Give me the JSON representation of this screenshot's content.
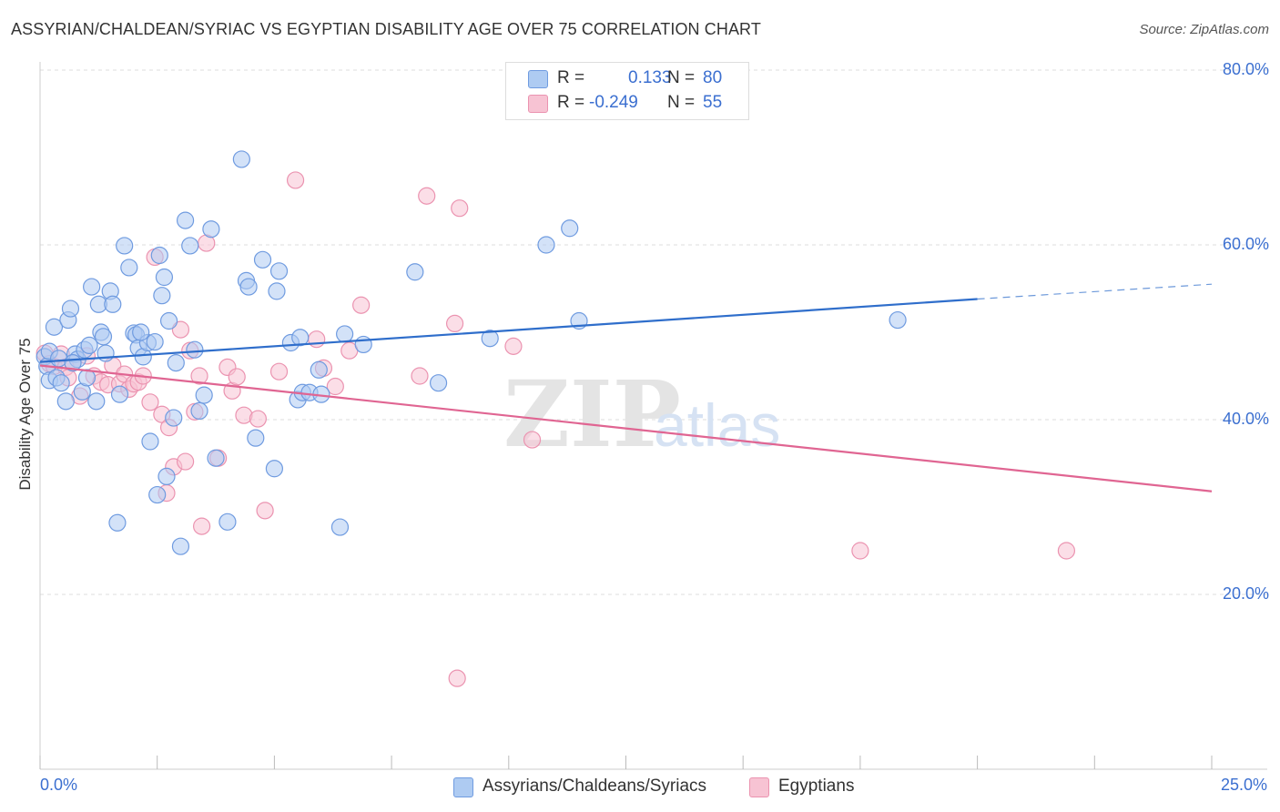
{
  "title": "ASSYRIAN/CHALDEAN/SYRIAC VS EGYPTIAN DISABILITY AGE OVER 75 CORRELATION CHART",
  "source": "Source: ZipAtlas.com",
  "colors": {
    "blue_fill": "#aecbf2",
    "blue_stroke": "#6f9be0",
    "blue_line": "#2f6ecb",
    "pink_fill": "#f7c3d3",
    "pink_stroke": "#eb93b0",
    "pink_line": "#e06592",
    "tick_text": "#3b6fd0"
  },
  "legend": {
    "blue": {
      "r_label": "R =",
      "r_value": "0.133",
      "n_label": "N =",
      "n_value": "80"
    },
    "pink": {
      "r_label": "R =",
      "r_value": "-0.249",
      "n_label": "N =",
      "n_value": "55"
    }
  },
  "bottom_legend": {
    "blue": "Assyrians/Chaldeans/Syriacs",
    "pink": "Egyptians"
  },
  "watermark": {
    "zip": "ZIP",
    "atlas": "atlas"
  },
  "chart_data": {
    "type": "scatter",
    "title": "ASSYRIAN/CHALDEAN/SYRIAC VS EGYPTIAN DISABILITY AGE OVER 75 CORRELATION CHART",
    "xlabel": "",
    "ylabel": "Disability Age Over 75",
    "xlim": [
      0,
      25
    ],
    "ylim": [
      0,
      80
    ],
    "x_tick_labels": [
      "0.0%",
      "25.0%"
    ],
    "y_ticks": [
      20,
      40,
      60,
      80
    ],
    "y_tick_labels": [
      "20.0%",
      "40.0%",
      "60.0%",
      "80.0%"
    ],
    "grid": true,
    "series": [
      {
        "name": "Assyrians/Chaldeans/Syriacs",
        "color": "blue",
        "trend": {
          "x0": 0,
          "y0": 46.6,
          "x1": 20,
          "y1": 53.8,
          "dash_to_x": 25,
          "dash_to_y": 55.5
        },
        "points": [
          [
            0.1,
            47.2
          ],
          [
            0.15,
            46.1
          ],
          [
            0.2,
            44.5
          ],
          [
            0.3,
            50.6
          ],
          [
            0.35,
            44.8
          ],
          [
            0.45,
            44.2
          ],
          [
            0.55,
            42.1
          ],
          [
            0.6,
            51.4
          ],
          [
            0.65,
            52.7
          ],
          [
            0.75,
            47.5
          ],
          [
            0.8,
            46.9
          ],
          [
            0.9,
            43.2
          ],
          [
            0.95,
            48.0
          ],
          [
            1.0,
            44.8
          ],
          [
            1.1,
            55.2
          ],
          [
            1.2,
            42.1
          ],
          [
            1.25,
            53.2
          ],
          [
            1.3,
            50.0
          ],
          [
            1.4,
            47.6
          ],
          [
            1.5,
            54.7
          ],
          [
            1.55,
            53.2
          ],
          [
            1.65,
            28.2
          ],
          [
            1.7,
            42.9
          ],
          [
            1.8,
            59.9
          ],
          [
            1.9,
            57.4
          ],
          [
            2.0,
            49.9
          ],
          [
            2.05,
            49.7
          ],
          [
            2.1,
            48.2
          ],
          [
            2.2,
            47.2
          ],
          [
            2.3,
            48.8
          ],
          [
            2.35,
            37.5
          ],
          [
            2.45,
            48.9
          ],
          [
            2.5,
            31.4
          ],
          [
            2.55,
            58.8
          ],
          [
            2.6,
            54.2
          ],
          [
            2.65,
            56.3
          ],
          [
            2.7,
            33.5
          ],
          [
            2.75,
            51.3
          ],
          [
            2.85,
            40.2
          ],
          [
            2.9,
            46.5
          ],
          [
            3.0,
            25.5
          ],
          [
            3.1,
            62.8
          ],
          [
            3.2,
            59.9
          ],
          [
            3.3,
            48.0
          ],
          [
            3.4,
            41.0
          ],
          [
            3.5,
            42.8
          ],
          [
            3.65,
            61.8
          ],
          [
            3.75,
            35.6
          ],
          [
            4.0,
            28.3
          ],
          [
            4.3,
            69.8
          ],
          [
            4.4,
            55.9
          ],
          [
            4.45,
            55.2
          ],
          [
            4.6,
            37.9
          ],
          [
            4.75,
            58.3
          ],
          [
            5.0,
            34.4
          ],
          [
            5.05,
            54.7
          ],
          [
            5.1,
            57.0
          ],
          [
            5.35,
            48.8
          ],
          [
            5.5,
            42.3
          ],
          [
            5.55,
            49.4
          ],
          [
            5.6,
            43.1
          ],
          [
            5.75,
            43.1
          ],
          [
            5.95,
            45.7
          ],
          [
            6.0,
            42.9
          ],
          [
            6.4,
            27.7
          ],
          [
            6.5,
            49.8
          ],
          [
            6.9,
            48.6
          ],
          [
            8.0,
            56.9
          ],
          [
            8.5,
            44.2
          ],
          [
            9.6,
            49.3
          ],
          [
            10.8,
            60.0
          ],
          [
            11.3,
            61.9
          ],
          [
            11.5,
            51.3
          ],
          [
            18.3,
            51.4
          ],
          [
            0.2,
            47.8
          ],
          [
            0.4,
            47.0
          ],
          [
            0.7,
            46.5
          ],
          [
            1.05,
            48.5
          ],
          [
            1.35,
            49.5
          ],
          [
            2.15,
            50.0
          ]
        ]
      },
      {
        "name": "Egyptians",
        "color": "pink",
        "trend": {
          "x0": 0,
          "y0": 46.2,
          "x1": 25,
          "y1": 31.8
        },
        "points": [
          [
            0.1,
            47.6
          ],
          [
            0.2,
            46.4
          ],
          [
            0.3,
            46.1
          ],
          [
            0.45,
            47.5
          ],
          [
            0.55,
            46.0
          ],
          [
            0.7,
            46.5
          ],
          [
            0.85,
            42.7
          ],
          [
            1.0,
            47.3
          ],
          [
            1.15,
            45.0
          ],
          [
            1.3,
            44.3
          ],
          [
            1.45,
            44.0
          ],
          [
            1.55,
            46.2
          ],
          [
            1.7,
            44.1
          ],
          [
            1.8,
            45.2
          ],
          [
            1.9,
            43.5
          ],
          [
            2.0,
            44.1
          ],
          [
            2.1,
            44.3
          ],
          [
            2.2,
            45.0
          ],
          [
            2.35,
            42.0
          ],
          [
            2.45,
            58.6
          ],
          [
            2.6,
            40.6
          ],
          [
            2.7,
            31.6
          ],
          [
            2.75,
            39.1
          ],
          [
            2.85,
            34.6
          ],
          [
            3.0,
            50.3
          ],
          [
            3.1,
            35.2
          ],
          [
            3.2,
            47.9
          ],
          [
            3.3,
            40.9
          ],
          [
            3.4,
            45.0
          ],
          [
            3.45,
            27.8
          ],
          [
            3.55,
            60.2
          ],
          [
            3.8,
            35.6
          ],
          [
            4.0,
            46.0
          ],
          [
            4.1,
            43.3
          ],
          [
            4.2,
            44.9
          ],
          [
            4.35,
            40.5
          ],
          [
            4.65,
            40.1
          ],
          [
            4.8,
            29.6
          ],
          [
            5.1,
            45.5
          ],
          [
            5.45,
            67.4
          ],
          [
            5.9,
            49.2
          ],
          [
            6.05,
            45.9
          ],
          [
            6.3,
            43.8
          ],
          [
            6.6,
            47.9
          ],
          [
            6.85,
            53.1
          ],
          [
            8.1,
            45.0
          ],
          [
            8.25,
            65.6
          ],
          [
            8.85,
            51.0
          ],
          [
            8.9,
            10.4
          ],
          [
            8.95,
            64.2
          ],
          [
            10.1,
            48.4
          ],
          [
            10.5,
            37.7
          ],
          [
            17.5,
            25.0
          ],
          [
            21.9,
            25.0
          ],
          [
            0.6,
            44.8
          ]
        ]
      }
    ]
  }
}
